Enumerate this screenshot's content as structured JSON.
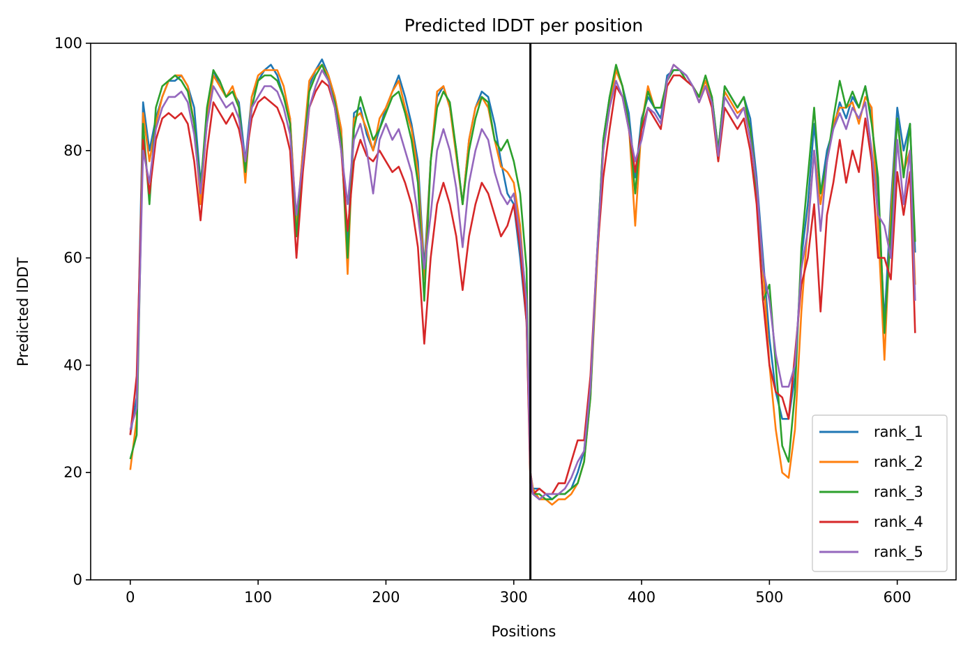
{
  "chart_data": {
    "type": "line",
    "title": "Predicted lDDT per position",
    "xlabel": "Positions",
    "ylabel": "Predicted lDDT",
    "xlim": [
      -31,
      646
    ],
    "ylim": [
      0,
      100
    ],
    "x_ticks": [
      0,
      100,
      200,
      300,
      400,
      500,
      600
    ],
    "y_ticks": [
      0,
      20,
      40,
      60,
      80,
      100
    ],
    "grid": false,
    "legend": "lower-right",
    "chain_break": 313,
    "x": [
      0,
      5,
      10,
      15,
      20,
      25,
      30,
      35,
      40,
      45,
      50,
      55,
      60,
      65,
      70,
      75,
      80,
      85,
      90,
      95,
      100,
      105,
      110,
      115,
      120,
      125,
      130,
      135,
      140,
      145,
      150,
      155,
      160,
      165,
      170,
      175,
      180,
      185,
      190,
      195,
      200,
      205,
      210,
      215,
      220,
      225,
      230,
      235,
      240,
      245,
      250,
      255,
      260,
      265,
      270,
      275,
      280,
      285,
      290,
      295,
      300,
      305,
      310,
      313,
      315,
      320,
      325,
      330,
      335,
      340,
      345,
      350,
      355,
      360,
      365,
      370,
      375,
      380,
      385,
      390,
      395,
      400,
      405,
      410,
      415,
      420,
      425,
      430,
      435,
      440,
      445,
      450,
      455,
      460,
      465,
      470,
      475,
      480,
      485,
      490,
      495,
      500,
      505,
      510,
      515,
      520,
      525,
      530,
      535,
      540,
      545,
      550,
      555,
      560,
      565,
      570,
      575,
      580,
      585,
      590,
      595,
      600,
      605,
      610,
      614
    ],
    "series": [
      {
        "name": "rank_1",
        "color": "#1f77b4",
        "values": [
          27,
          34,
          89,
          80,
          86,
          90,
          93,
          93,
          94,
          92,
          88,
          74,
          85,
          95,
          92,
          90,
          91,
          89,
          78,
          90,
          93,
          95,
          96,
          94,
          90,
          86,
          65,
          80,
          92,
          95,
          97,
          94,
          90,
          84,
          62,
          87,
          88,
          83,
          80,
          84,
          88,
          91,
          94,
          90,
          85,
          78,
          58,
          78,
          90,
          92,
          88,
          80,
          70,
          82,
          88,
          91,
          90,
          85,
          78,
          72,
          70,
          60,
          48,
          20,
          17,
          17,
          16,
          15,
          16,
          16,
          17,
          20,
          24,
          36,
          60,
          82,
          90,
          95,
          92,
          87,
          75,
          86,
          90,
          88,
          86,
          94,
          95,
          95,
          94,
          92,
          90,
          93,
          90,
          80,
          92,
          90,
          88,
          90,
          86,
          75,
          60,
          45,
          35,
          30,
          30,
          38,
          60,
          70,
          85,
          72,
          80,
          84,
          89,
          86,
          90,
          88,
          92,
          86,
          72,
          48,
          70,
          88,
          80,
          85,
          61
        ]
      },
      {
        "name": "rank_2",
        "color": "#ff7f0e",
        "values": [
          20.5,
          30,
          87,
          78,
          85,
          90,
          93,
          94,
          94,
          92,
          85,
          70,
          86,
          94,
          92,
          90,
          92,
          88,
          74,
          90,
          94,
          95,
          95,
          95,
          92,
          86,
          66,
          80,
          93,
          95,
          96,
          94,
          90,
          84,
          57,
          86,
          87,
          84,
          80,
          86,
          88,
          91,
          93,
          88,
          84,
          76,
          56,
          78,
          91,
          92,
          88,
          79,
          70,
          82,
          88,
          90,
          88,
          82,
          77,
          76,
          74,
          66,
          50,
          20,
          17,
          15,
          15,
          14,
          15,
          15,
          16,
          18,
          22,
          34,
          58,
          80,
          88,
          95,
          92,
          85,
          66,
          85,
          92,
          88,
          88,
          93,
          96,
          95,
          93,
          92,
          90,
          93,
          89,
          78,
          91,
          89,
          87,
          88,
          84,
          73,
          58,
          40,
          28,
          20,
          19,
          28,
          50,
          66,
          80,
          70,
          78,
          85,
          88,
          88,
          89,
          85,
          90,
          88,
          66,
          41,
          68,
          86,
          76,
          80,
          55
        ]
      },
      {
        "name": "rank_3",
        "color": "#2ca02c",
        "values": [
          22.5,
          27,
          85,
          70,
          88,
          92,
          93,
          94,
          93,
          91,
          85,
          73,
          88,
          95,
          93,
          90,
          91,
          88,
          76,
          88,
          93,
          94,
          94,
          93,
          90,
          85,
          64,
          78,
          91,
          94,
          96,
          93,
          89,
          82,
          60,
          84,
          90,
          86,
          82,
          84,
          87,
          90,
          91,
          87,
          82,
          74,
          52,
          78,
          88,
          91,
          89,
          80,
          70,
          80,
          86,
          90,
          89,
          82,
          80,
          82,
          78,
          72,
          58,
          18,
          16,
          16,
          15,
          15,
          16,
          16,
          17,
          18,
          22,
          34,
          60,
          82,
          90,
          96,
          92,
          85,
          72,
          85,
          91,
          88,
          88,
          93,
          95,
          95,
          93,
          92,
          90,
          94,
          90,
          80,
          92,
          90,
          88,
          90,
          84,
          72,
          52,
          55,
          40,
          25,
          22,
          35,
          62,
          75,
          88,
          72,
          78,
          86,
          93,
          88,
          91,
          88,
          92,
          85,
          75,
          46,
          65,
          86,
          75,
          85,
          63
        ]
      },
      {
        "name": "rank_4",
        "color": "#d62728",
        "values": [
          27,
          38,
          82,
          72,
          82,
          86,
          87,
          86,
          87,
          85,
          78,
          67,
          80,
          89,
          87,
          85,
          87,
          84,
          78,
          86,
          89,
          90,
          89,
          88,
          85,
          80,
          60,
          76,
          88,
          91,
          93,
          92,
          88,
          80,
          65,
          78,
          82,
          79,
          78,
          80,
          78,
          76,
          77,
          74,
          70,
          62,
          44,
          60,
          70,
          74,
          70,
          64,
          54,
          64,
          70,
          74,
          72,
          68,
          64,
          66,
          70,
          62,
          48,
          18,
          16,
          17,
          16,
          16,
          18,
          18,
          22,
          26,
          26,
          38,
          60,
          75,
          84,
          92,
          90,
          84,
          76,
          84,
          88,
          86,
          84,
          92,
          94,
          94,
          93,
          92,
          89,
          92,
          88,
          78,
          88,
          86,
          84,
          86,
          80,
          70,
          52,
          40,
          35,
          34,
          30,
          42,
          55,
          60,
          70,
          50,
          68,
          74,
          82,
          74,
          80,
          76,
          86,
          78,
          60,
          60,
          56,
          76,
          68,
          76,
          46
        ]
      },
      {
        "name": "rank_5",
        "color": "#9467bd",
        "values": [
          28,
          32,
          80,
          74,
          84,
          88,
          90,
          90,
          91,
          89,
          83,
          72,
          85,
          92,
          90,
          88,
          89,
          86,
          78,
          88,
          90,
          92,
          92,
          91,
          88,
          83,
          68,
          78,
          88,
          92,
          95,
          93,
          88,
          80,
          70,
          82,
          85,
          80,
          72,
          82,
          85,
          82,
          84,
          80,
          76,
          68,
          58,
          68,
          80,
          84,
          80,
          73,
          62,
          74,
          80,
          84,
          82,
          76,
          72,
          70,
          72,
          64,
          52,
          20,
          16,
          15,
          16,
          16,
          16,
          17,
          19,
          22,
          24,
          36,
          60,
          80,
          88,
          93,
          90,
          84,
          78,
          82,
          88,
          87,
          85,
          93,
          96,
          95,
          94,
          92,
          89,
          92,
          89,
          79,
          90,
          88,
          86,
          88,
          82,
          74,
          58,
          52,
          42,
          36,
          36,
          40,
          58,
          65,
          80,
          65,
          78,
          84,
          87,
          84,
          88,
          86,
          89,
          80,
          68,
          66,
          60,
          82,
          70,
          80,
          52
        ]
      }
    ]
  }
}
